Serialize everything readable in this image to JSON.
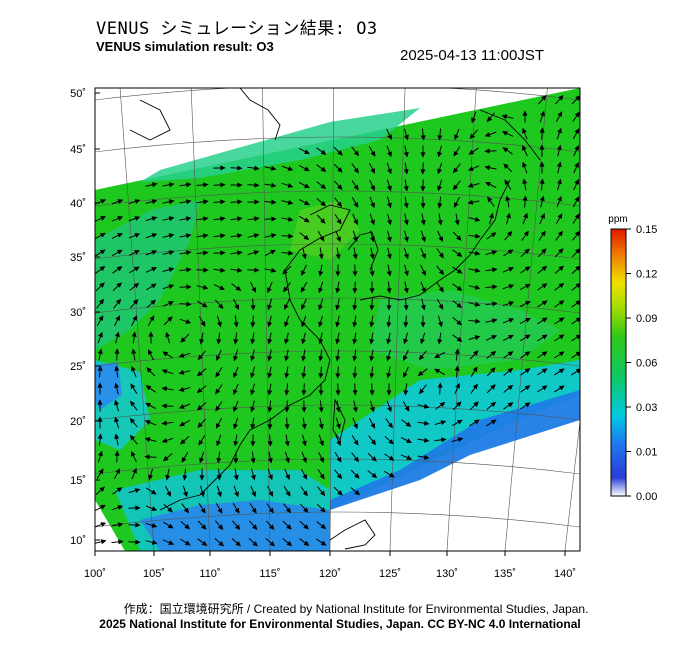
{
  "header": {
    "title_jp": "VENUS シミュレーション結果: O3",
    "title_en": "VENUS simulation result: O3",
    "timestamp": "2025-04-13 11:00JST"
  },
  "map": {
    "lat_labels": [
      "50˚",
      "45˚",
      "40˚",
      "35˚",
      "30˚",
      "25˚",
      "20˚",
      "15˚",
      "10˚"
    ],
    "lon_labels": [
      "100˚",
      "105˚",
      "110˚",
      "115˚",
      "120˚",
      "125˚",
      "130˚",
      "135˚",
      "140˚"
    ],
    "field": "O3 concentration",
    "colors": {
      "low": "#1e6ce6",
      "mid": "#00d0c8",
      "high": "#18c818",
      "land_line": "#000000",
      "frame": "#000000"
    }
  },
  "colorbar": {
    "unit": "ppm",
    "ticks": [
      "0.15",
      "0.12",
      "0.09",
      "0.06",
      "0.03",
      "0.01",
      "0.00"
    ],
    "stops": [
      "#ffffff",
      "#2020d0",
      "#1e7cf0",
      "#00c8e0",
      "#10c850",
      "#40d020",
      "#a0e000",
      "#f0e000",
      "#f08000",
      "#e02000"
    ]
  },
  "footer": {
    "credit_line1": "作成：国立環境研究所 / Created by National Institute for Environmental Studies, Japan.",
    "credit_line2": "2025 National Institute for Environmental Studies, Japan. CC BY-NC 4.0 International"
  }
}
